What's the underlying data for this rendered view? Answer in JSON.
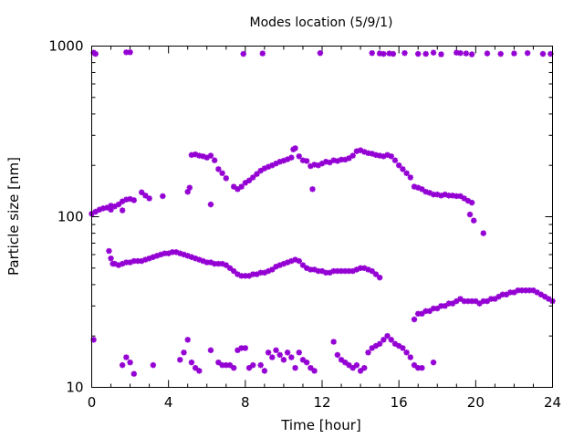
{
  "chart_data": {
    "type": "scatter",
    "title": "Modes location (5/9/1)",
    "xlabel": "Time [hour]",
    "ylabel": "Particle size [nm]",
    "xlim": [
      0,
      24
    ],
    "ylim": [
      10,
      1000
    ],
    "yscale": "log",
    "x_ticks": [
      0,
      4,
      8,
      12,
      16,
      20,
      24
    ],
    "x_tick_labels": [
      "0",
      "4",
      "8",
      "12",
      "16",
      "20",
      "24"
    ],
    "y_ticks": [
      10,
      100,
      1000
    ],
    "y_tick_labels": [
      "10",
      "100",
      "1000"
    ],
    "grid": false,
    "legend": "none",
    "marker_color": "#9400d3",
    "series": [
      {
        "mode": "top",
        "points": [
          [
            0.1,
            915
          ],
          [
            0.2,
            900
          ],
          [
            1.8,
            920
          ],
          [
            2.0,
            920
          ],
          [
            7.9,
            900
          ],
          [
            8.9,
            905
          ],
          [
            11.9,
            910
          ],
          [
            14.6,
            910
          ],
          [
            15.0,
            905
          ],
          [
            15.2,
            900
          ],
          [
            15.5,
            905
          ],
          [
            15.7,
            900
          ],
          [
            16.3,
            910
          ],
          [
            17.0,
            900
          ],
          [
            17.4,
            900
          ],
          [
            17.8,
            915
          ],
          [
            18.2,
            895
          ],
          [
            19.0,
            915
          ],
          [
            19.2,
            910
          ],
          [
            19.5,
            905
          ],
          [
            19.8,
            895
          ],
          [
            20.6,
            905
          ],
          [
            21.3,
            900
          ],
          [
            22.0,
            905
          ],
          [
            22.7,
            910
          ],
          [
            23.5,
            900
          ],
          [
            23.9,
            900
          ]
        ]
      },
      {
        "mode": "upper",
        "points": [
          [
            0.0,
            104
          ],
          [
            0.2,
            107
          ],
          [
            0.4,
            110
          ],
          [
            0.6,
            112
          ],
          [
            0.8,
            113
          ],
          [
            1.0,
            116
          ],
          [
            1.2,
            115
          ],
          [
            1.4,
            118
          ],
          [
            1.6,
            123
          ],
          [
            1.8,
            126
          ],
          [
            2.0,
            127
          ],
          [
            2.2,
            125
          ],
          [
            1.0,
            110
          ],
          [
            1.6,
            109
          ],
          [
            2.6,
            139
          ],
          [
            2.8,
            133
          ],
          [
            3.0,
            128
          ],
          [
            3.7,
            132
          ],
          [
            5.0,
            140
          ],
          [
            5.1,
            148
          ],
          [
            5.2,
            230
          ],
          [
            5.4,
            232
          ],
          [
            5.6,
            228
          ],
          [
            5.8,
            226
          ],
          [
            6.0,
            222
          ],
          [
            6.2,
            228
          ],
          [
            6.4,
            214
          ],
          [
            6.6,
            190
          ],
          [
            6.8,
            180
          ],
          [
            7.0,
            168
          ],
          [
            6.2,
            118
          ],
          [
            7.4,
            150
          ],
          [
            7.6,
            145
          ],
          [
            7.8,
            150
          ],
          [
            8.0,
            158
          ],
          [
            8.2,
            163
          ],
          [
            8.4,
            170
          ],
          [
            8.6,
            178
          ],
          [
            8.8,
            186
          ],
          [
            9.0,
            192
          ],
          [
            9.2,
            196
          ],
          [
            9.4,
            200
          ],
          [
            9.6,
            205
          ],
          [
            9.8,
            210
          ],
          [
            10.0,
            213
          ],
          [
            10.2,
            217
          ],
          [
            10.4,
            222
          ],
          [
            10.5,
            248
          ],
          [
            10.6,
            252
          ],
          [
            10.8,
            226
          ],
          [
            11.0,
            214
          ],
          [
            11.2,
            212
          ],
          [
            11.4,
            198
          ],
          [
            11.6,
            202
          ],
          [
            11.8,
            200
          ],
          [
            12.0,
            205
          ],
          [
            12.2,
            210
          ],
          [
            12.4,
            208
          ],
          [
            12.6,
            214
          ],
          [
            12.8,
            212
          ],
          [
            13.0,
            216
          ],
          [
            13.2,
            216
          ],
          [
            13.4,
            220
          ],
          [
            13.6,
            228
          ],
          [
            13.8,
            242
          ],
          [
            14.0,
            245
          ],
          [
            14.2,
            240
          ],
          [
            14.4,
            236
          ],
          [
            14.6,
            234
          ],
          [
            14.8,
            230
          ],
          [
            15.0,
            228
          ],
          [
            15.2,
            226
          ],
          [
            15.4,
            230
          ],
          [
            15.6,
            226
          ],
          [
            15.8,
            214
          ],
          [
            16.0,
            200
          ],
          [
            16.2,
            190
          ],
          [
            16.4,
            180
          ],
          [
            16.6,
            170
          ],
          [
            16.8,
            150
          ],
          [
            17.0,
            148
          ],
          [
            17.2,
            145
          ],
          [
            17.4,
            140
          ],
          [
            17.6,
            138
          ],
          [
            17.8,
            135
          ],
          [
            18.0,
            135
          ],
          [
            18.2,
            133
          ],
          [
            18.4,
            135
          ],
          [
            18.6,
            133
          ],
          [
            18.8,
            133
          ],
          [
            19.0,
            132
          ],
          [
            19.2,
            132
          ],
          [
            19.4,
            128
          ],
          [
            19.6,
            124
          ],
          [
            19.8,
            121
          ],
          [
            11.5,
            145
          ],
          [
            19.7,
            103
          ],
          [
            19.9,
            95
          ],
          [
            20.4,
            80
          ]
        ]
      },
      {
        "mode": "middle",
        "points": [
          [
            0.9,
            63
          ],
          [
            1.0,
            57
          ],
          [
            1.1,
            53
          ],
          [
            1.2,
            53
          ],
          [
            1.4,
            52
          ],
          [
            1.6,
            53
          ],
          [
            1.8,
            54
          ],
          [
            2.0,
            54
          ],
          [
            2.2,
            55
          ],
          [
            2.4,
            55
          ],
          [
            2.6,
            55
          ],
          [
            2.8,
            56
          ],
          [
            3.0,
            57
          ],
          [
            3.2,
            58
          ],
          [
            3.4,
            59
          ],
          [
            3.6,
            60
          ],
          [
            3.8,
            61
          ],
          [
            4.0,
            61
          ],
          [
            4.2,
            62
          ],
          [
            4.4,
            62
          ],
          [
            4.6,
            61
          ],
          [
            4.8,
            60
          ],
          [
            5.0,
            59
          ],
          [
            5.2,
            58
          ],
          [
            5.4,
            57
          ],
          [
            5.6,
            56
          ],
          [
            5.8,
            55
          ],
          [
            6.0,
            54
          ],
          [
            6.2,
            54
          ],
          [
            6.4,
            53
          ],
          [
            6.6,
            53
          ],
          [
            6.8,
            53
          ],
          [
            7.0,
            52
          ],
          [
            7.2,
            50
          ],
          [
            7.4,
            48
          ],
          [
            7.6,
            46
          ],
          [
            7.8,
            45
          ],
          [
            8.0,
            45
          ],
          [
            8.2,
            45
          ],
          [
            8.4,
            46
          ],
          [
            8.6,
            46
          ],
          [
            8.8,
            47
          ],
          [
            9.0,
            47
          ],
          [
            9.2,
            48
          ],
          [
            9.4,
            49
          ],
          [
            9.6,
            51
          ],
          [
            9.8,
            52
          ],
          [
            10.0,
            53
          ],
          [
            10.2,
            54
          ],
          [
            10.4,
            55
          ],
          [
            10.6,
            56
          ],
          [
            10.8,
            55
          ],
          [
            11.0,
            52
          ],
          [
            11.2,
            50
          ],
          [
            11.4,
            49
          ],
          [
            11.6,
            49
          ],
          [
            11.8,
            48
          ],
          [
            12.0,
            48
          ],
          [
            12.2,
            47
          ],
          [
            12.4,
            47
          ],
          [
            12.6,
            48
          ],
          [
            12.8,
            48
          ],
          [
            13.0,
            48
          ],
          [
            13.2,
            48
          ],
          [
            13.4,
            48
          ],
          [
            13.6,
            48
          ],
          [
            13.8,
            49
          ],
          [
            14.0,
            50
          ],
          [
            14.2,
            50
          ],
          [
            14.4,
            49
          ],
          [
            14.6,
            48
          ],
          [
            14.8,
            46
          ],
          [
            15.0,
            44
          ]
        ]
      },
      {
        "mode": "late-middle",
        "points": [
          [
            16.8,
            25
          ],
          [
            17.0,
            27
          ],
          [
            17.2,
            27
          ],
          [
            17.4,
            28
          ],
          [
            17.6,
            28
          ],
          [
            17.8,
            29
          ],
          [
            18.0,
            29
          ],
          [
            18.2,
            30
          ],
          [
            18.4,
            30
          ],
          [
            18.6,
            31
          ],
          [
            18.8,
            31
          ],
          [
            19.0,
            32
          ],
          [
            19.2,
            33
          ],
          [
            19.4,
            32
          ],
          [
            19.6,
            32
          ],
          [
            19.8,
            32
          ],
          [
            20.0,
            32
          ],
          [
            20.2,
            31
          ],
          [
            20.4,
            32
          ],
          [
            20.6,
            32
          ],
          [
            20.8,
            33
          ],
          [
            21.0,
            33
          ],
          [
            21.2,
            34
          ],
          [
            21.4,
            35
          ],
          [
            21.6,
            35
          ],
          [
            21.8,
            36
          ],
          [
            22.0,
            36
          ],
          [
            22.2,
            37
          ],
          [
            22.4,
            37
          ],
          [
            22.6,
            37
          ],
          [
            22.8,
            37
          ],
          [
            23.0,
            37
          ],
          [
            23.2,
            36
          ],
          [
            23.4,
            35
          ],
          [
            23.6,
            34
          ],
          [
            23.8,
            33
          ],
          [
            24.0,
            32
          ]
        ]
      },
      {
        "mode": "lower",
        "points": [
          [
            0.1,
            19
          ],
          [
            1.6,
            13.5
          ],
          [
            1.8,
            15
          ],
          [
            2.0,
            14
          ],
          [
            2.2,
            12
          ],
          [
            3.2,
            13.5
          ],
          [
            4.6,
            14.5
          ],
          [
            4.8,
            16
          ],
          [
            5.0,
            19
          ],
          [
            5.2,
            14
          ],
          [
            5.4,
            13
          ],
          [
            5.6,
            12.5
          ],
          [
            6.2,
            16.5
          ],
          [
            6.6,
            14
          ],
          [
            6.8,
            13.5
          ],
          [
            7.0,
            13.5
          ],
          [
            7.2,
            13.5
          ],
          [
            7.4,
            13
          ],
          [
            7.6,
            16.5
          ],
          [
            7.8,
            17
          ],
          [
            8.0,
            17
          ],
          [
            8.2,
            13
          ],
          [
            8.4,
            13.5
          ],
          [
            8.8,
            13.5
          ],
          [
            9.0,
            12.5
          ],
          [
            9.2,
            16
          ],
          [
            9.4,
            15
          ],
          [
            9.6,
            16.5
          ],
          [
            9.8,
            15.5
          ],
          [
            10.0,
            14.5
          ],
          [
            10.2,
            16
          ],
          [
            10.4,
            15
          ],
          [
            10.6,
            13
          ],
          [
            10.8,
            16
          ],
          [
            11.0,
            14.5
          ],
          [
            11.2,
            14
          ],
          [
            11.4,
            13
          ],
          [
            11.6,
            12.5
          ],
          [
            12.6,
            18.5
          ],
          [
            12.8,
            15.5
          ],
          [
            13.0,
            14.5
          ],
          [
            13.2,
            14
          ],
          [
            13.4,
            13.5
          ],
          [
            13.6,
            13
          ],
          [
            13.8,
            13.5
          ],
          [
            14.0,
            12.5
          ],
          [
            14.2,
            13
          ],
          [
            14.4,
            16
          ],
          [
            14.6,
            17
          ],
          [
            14.8,
            17.5
          ],
          [
            15.0,
            18
          ],
          [
            15.2,
            19
          ],
          [
            15.4,
            20
          ],
          [
            15.6,
            19
          ],
          [
            15.8,
            18
          ],
          [
            16.0,
            17.5
          ],
          [
            16.2,
            17
          ],
          [
            16.4,
            16
          ],
          [
            16.6,
            15
          ],
          [
            16.8,
            13.5
          ],
          [
            17.0,
            13
          ],
          [
            17.2,
            13
          ],
          [
            17.8,
            14
          ]
        ]
      }
    ]
  }
}
